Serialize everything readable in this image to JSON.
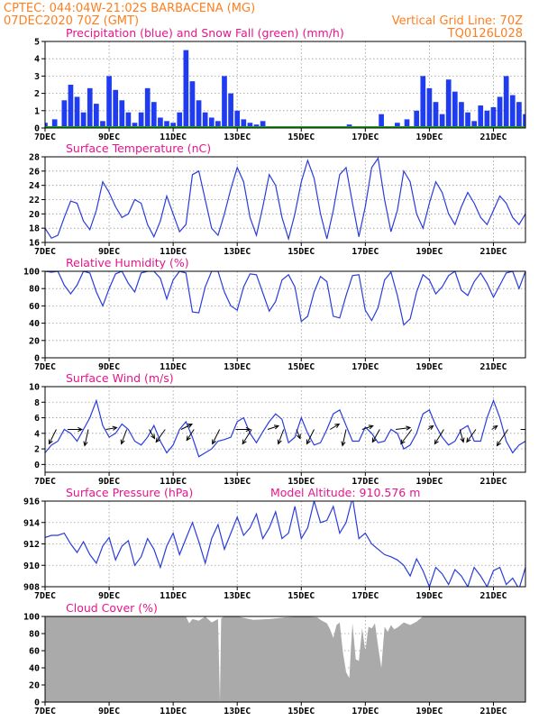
{
  "header": {
    "station": "CPTEC:   044:04W-21:02S  BARBACENA (MG)",
    "run": "07DEC2020 70Z (GMT)",
    "grid_note": "Vertical Grid Line: 70Z",
    "model_code": "TQ0126L028"
  },
  "colors": {
    "header_text": "#ff7f1f",
    "panel_title": "#e8148c",
    "precip": "#1f3cf0",
    "snow": "#22a022",
    "line": "#2a3cdc",
    "cloud": "#aaaaaa"
  },
  "x_axis": {
    "days": [
      7,
      22
    ],
    "tick_labels": [
      "7DEC",
      "9DEC",
      "11DEC",
      "13DEC",
      "15DEC",
      "17DEC",
      "19DEC",
      "21DEC"
    ],
    "tick_days": [
      7,
      9,
      11,
      13,
      15,
      17,
      19,
      21
    ]
  },
  "panels": [
    {
      "id": "precip",
      "title": "Precipitation (blue) and Snow Fall (green) (mm/h)",
      "ylim": [
        0,
        5
      ],
      "yticks": [
        "0",
        "1",
        "2",
        "3",
        "4",
        "5"
      ]
    },
    {
      "id": "temp",
      "title": "Surface Temperature (nC)",
      "ylim": [
        16,
        28
      ],
      "yticks": [
        "16",
        "18",
        "20",
        "22",
        "24",
        "26",
        "28"
      ]
    },
    {
      "id": "rh",
      "title": "Relative Humidity (%)",
      "ylim": [
        0,
        100
      ],
      "yticks": [
        "0",
        "20",
        "40",
        "60",
        "80",
        "100"
      ]
    },
    {
      "id": "wind",
      "title": "Surface Wind (m/s)",
      "ylim": [
        -1,
        10
      ],
      "yticks": [
        "0",
        "2",
        "4",
        "6",
        "8",
        "10"
      ]
    },
    {
      "id": "pressure",
      "title": "Surface Pressure (hPa)",
      "extra": "Model Altitude: 910.576 m",
      "ylim": [
        908,
        916
      ],
      "yticks": [
        "908",
        "910",
        "912",
        "914",
        "916"
      ]
    },
    {
      "id": "cloud",
      "title": "Cloud Cover (%)",
      "ylim": [
        0,
        100
      ],
      "yticks": [
        "0",
        "20",
        "40",
        "60",
        "80",
        "100"
      ]
    }
  ],
  "chart_data": [
    {
      "type": "bar",
      "title": "Precipitation (blue) and Snow Fall (green) (mm/h)",
      "ylim": [
        0,
        5
      ],
      "x_day": [
        7.0,
        7.3,
        7.6,
        7.8,
        8.0,
        8.2,
        8.4,
        8.6,
        8.8,
        9.0,
        9.2,
        9.4,
        9.6,
        9.8,
        10.0,
        10.2,
        10.4,
        10.6,
        10.8,
        11.0,
        11.2,
        11.4,
        11.6,
        11.8,
        12.0,
        12.2,
        12.4,
        12.6,
        12.8,
        13.0,
        13.2,
        13.4,
        13.6,
        13.8,
        14.0,
        14.5,
        15.0,
        15.5,
        16.0,
        16.5,
        17.0,
        17.5,
        18.0,
        18.3,
        18.6,
        18.8,
        19.0,
        19.2,
        19.4,
        19.6,
        19.8,
        20.0,
        20.2,
        20.4,
        20.6,
        20.8,
        21.0,
        21.2,
        21.4,
        21.6,
        21.8,
        22.0
      ],
      "precip": [
        0.3,
        0.5,
        1.6,
        2.5,
        1.8,
        0.9,
        2.3,
        1.4,
        0.4,
        3.0,
        2.2,
        1.6,
        0.9,
        0.3,
        0.9,
        2.3,
        1.5,
        0.6,
        0.4,
        0.3,
        0.9,
        4.5,
        2.7,
        1.6,
        0.9,
        0.6,
        0.4,
        3.0,
        2.0,
        1.0,
        0.5,
        0.3,
        0.2,
        0.4,
        0.1,
        0.0,
        0.0,
        0.0,
        0.0,
        0.2,
        0.0,
        0.8,
        0.3,
        0.5,
        1.0,
        3.0,
        2.3,
        1.5,
        0.8,
        2.8,
        2.1,
        1.5,
        0.9,
        0.4,
        1.3,
        1.0,
        1.2,
        1.8,
        3.0,
        1.9,
        1.5,
        0.8
      ],
      "snow": 0
    },
    {
      "type": "line",
      "title": "Surface Temperature (nC)",
      "ylim": [
        16,
        28
      ],
      "x_day": [
        7.0,
        7.2,
        7.4,
        7.6,
        7.8,
        8.0,
        8.2,
        8.4,
        8.6,
        8.8,
        9.0,
        9.2,
        9.4,
        9.6,
        9.8,
        10.0,
        10.2,
        10.4,
        10.6,
        10.8,
        11.0,
        11.2,
        11.4,
        11.6,
        11.8,
        12.0,
        12.2,
        12.4,
        12.6,
        12.8,
        13.0,
        13.2,
        13.4,
        13.6,
        13.8,
        14.0,
        14.2,
        14.4,
        14.6,
        14.8,
        15.0,
        15.2,
        15.4,
        15.6,
        15.8,
        16.0,
        16.2,
        16.4,
        16.6,
        16.8,
        17.0,
        17.2,
        17.4,
        17.6,
        17.8,
        18.0,
        18.2,
        18.4,
        18.6,
        18.8,
        19.0,
        19.2,
        19.4,
        19.6,
        19.8,
        20.0,
        20.2,
        20.4,
        20.6,
        20.8,
        21.0,
        21.2,
        21.4,
        21.6,
        21.8,
        22.0
      ],
      "values": [
        18.0,
        16.6,
        17.0,
        19.5,
        21.8,
        21.5,
        19.0,
        17.8,
        20.5,
        24.5,
        23.0,
        21.0,
        19.5,
        20.0,
        22.0,
        21.5,
        18.5,
        16.8,
        19.0,
        22.5,
        20.0,
        17.5,
        18.5,
        25.5,
        26.0,
        22.0,
        18.0,
        17.0,
        20.0,
        23.5,
        26.5,
        24.5,
        19.5,
        17.0,
        21.0,
        25.5,
        24.0,
        19.5,
        16.5,
        20.0,
        24.5,
        27.5,
        25.0,
        20.0,
        16.5,
        20.5,
        25.5,
        26.5,
        21.5,
        16.8,
        21.0,
        26.5,
        27.8,
        22.0,
        17.5,
        20.5,
        26.0,
        24.5,
        20.0,
        18.0,
        21.5,
        24.5,
        23.0,
        20.0,
        18.5,
        21.0,
        23.0,
        21.5,
        19.5,
        18.5,
        20.5,
        22.5,
        21.5,
        19.5,
        18.5,
        20.0
      ]
    },
    {
      "type": "line",
      "title": "Relative Humidity (%)",
      "ylim": [
        0,
        100
      ],
      "x_day": [
        7.0,
        7.2,
        7.4,
        7.6,
        7.8,
        8.0,
        8.2,
        8.4,
        8.6,
        8.8,
        9.0,
        9.2,
        9.4,
        9.6,
        9.8,
        10.0,
        10.2,
        10.4,
        10.6,
        10.8,
        11.0,
        11.2,
        11.4,
        11.6,
        11.8,
        12.0,
        12.2,
        12.4,
        12.6,
        12.8,
        13.0,
        13.2,
        13.4,
        13.6,
        13.8,
        14.0,
        14.2,
        14.4,
        14.6,
        14.8,
        15.0,
        15.2,
        15.4,
        15.6,
        15.8,
        16.0,
        16.2,
        16.4,
        16.6,
        16.8,
        17.0,
        17.2,
        17.4,
        17.6,
        17.8,
        18.0,
        18.2,
        18.4,
        18.6,
        18.8,
        19.0,
        19.2,
        19.4,
        19.6,
        19.8,
        20.0,
        20.2,
        20.4,
        20.6,
        20.8,
        21.0,
        21.2,
        21.4,
        21.6,
        21.8,
        22.0
      ],
      "values": [
        100,
        99,
        100,
        84,
        74,
        84,
        100,
        98,
        76,
        60,
        80,
        97,
        100,
        86,
        76,
        98,
        100,
        100,
        92,
        68,
        90,
        100,
        98,
        53,
        52,
        82,
        100,
        100,
        76,
        60,
        55,
        82,
        97,
        96,
        75,
        54,
        65,
        90,
        96,
        82,
        42,
        48,
        76,
        94,
        88,
        48,
        46,
        72,
        95,
        96,
        55,
        43,
        58,
        90,
        99,
        72,
        38,
        45,
        76,
        96,
        90,
        74,
        82,
        95,
        100,
        78,
        72,
        88,
        98,
        86,
        70,
        84,
        98,
        100,
        80,
        100
      ]
    },
    {
      "type": "line",
      "title": "Surface Wind (m/s)",
      "ylim": [
        -1,
        10
      ],
      "x_day": [
        7.0,
        7.2,
        7.4,
        7.6,
        7.8,
        8.0,
        8.2,
        8.4,
        8.6,
        8.8,
        9.0,
        9.2,
        9.4,
        9.6,
        9.8,
        10.0,
        10.2,
        10.4,
        10.6,
        10.8,
        11.0,
        11.2,
        11.4,
        11.6,
        11.8,
        12.0,
        12.2,
        12.4,
        12.6,
        12.8,
        13.0,
        13.2,
        13.4,
        13.6,
        13.8,
        14.0,
        14.2,
        14.4,
        14.6,
        14.8,
        15.0,
        15.2,
        15.4,
        15.6,
        15.8,
        16.0,
        16.2,
        16.4,
        16.6,
        16.8,
        17.0,
        17.2,
        17.4,
        17.6,
        17.8,
        18.0,
        18.2,
        18.4,
        18.6,
        18.8,
        19.0,
        19.2,
        19.4,
        19.6,
        19.8,
        20.0,
        20.2,
        20.4,
        20.6,
        20.8,
        21.0,
        21.2,
        21.4,
        21.6,
        21.8,
        22.0
      ],
      "values": [
        1.5,
        2.5,
        3.0,
        4.5,
        4.0,
        3.0,
        4.5,
        6.0,
        8.2,
        5.0,
        3.5,
        4.0,
        5.2,
        4.5,
        3.0,
        2.5,
        3.5,
        5.0,
        3.0,
        1.5,
        2.5,
        4.5,
        5.5,
        3.5,
        1.0,
        1.5,
        2.0,
        3.0,
        3.2,
        3.5,
        5.5,
        6.0,
        4.0,
        2.8,
        4.2,
        5.5,
        6.5,
        5.8,
        2.8,
        3.5,
        6.0,
        4.0,
        2.5,
        2.8,
        4.5,
        6.5,
        7.0,
        5.0,
        3.0,
        3.0,
        4.8,
        4.0,
        2.8,
        3.0,
        4.5,
        4.0,
        2.0,
        2.5,
        4.0,
        6.5,
        7.0,
        5.0,
        3.5,
        2.5,
        3.0,
        4.5,
        5.0,
        3.0,
        3.0,
        6.0,
        8.2,
        6.0,
        3.0,
        1.5,
        2.5,
        3.0
      ],
      "arrow_day": [
        7.35,
        7.7,
        8.35,
        8.9,
        9.55,
        10.25,
        10.75,
        11.25,
        11.65,
        12.45,
        12.95,
        13.45,
        13.95,
        14.45,
        14.85,
        15.4,
        15.9,
        16.4,
        16.9,
        17.45,
        17.95,
        18.45,
        18.95,
        19.45,
        19.95,
        20.45,
        20.95,
        21.45,
        21.85
      ],
      "arrow_u": [
        -0.4,
        0.8,
        -0.2,
        0.6,
        -0.3,
        0.3,
        -0.5,
        0.6,
        -0.4,
        -0.4,
        0.8,
        -0.5,
        0.6,
        -0.3,
        0.2,
        -0.4,
        0.5,
        -0.2,
        0.6,
        -0.4,
        0.8,
        -0.6,
        0.3,
        -0.5,
        0.2,
        -0.5,
        0.3,
        -0.6,
        0.5
      ],
      "arrow_v": [
        -0.8,
        0.0,
        -0.9,
        0.1,
        -0.8,
        -0.5,
        -0.7,
        0.3,
        -0.6,
        -0.8,
        0.0,
        -0.8,
        0.2,
        -0.8,
        -0.5,
        -0.8,
        0.3,
        -0.9,
        0.2,
        -0.7,
        0.1,
        -0.8,
        0.2,
        -0.8,
        -0.7,
        -0.7,
        0.2,
        -0.9,
        0.0
      ]
    },
    {
      "type": "line",
      "title": "Surface Pressure (hPa)",
      "ylim": [
        908,
        916
      ],
      "x_day": [
        7.0,
        7.2,
        7.4,
        7.6,
        7.8,
        8.0,
        8.2,
        8.4,
        8.6,
        8.8,
        9.0,
        9.2,
        9.4,
        9.6,
        9.8,
        10.0,
        10.2,
        10.4,
        10.6,
        10.8,
        11.0,
        11.2,
        11.4,
        11.6,
        11.8,
        12.0,
        12.2,
        12.4,
        12.6,
        12.8,
        13.0,
        13.2,
        13.4,
        13.6,
        13.8,
        14.0,
        14.2,
        14.4,
        14.6,
        14.8,
        15.0,
        15.2,
        15.4,
        15.6,
        15.8,
        16.0,
        16.2,
        16.4,
        16.6,
        16.8,
        17.0,
        17.2,
        17.4,
        17.6,
        17.8,
        18.0,
        18.2,
        18.4,
        18.6,
        18.8,
        19.0,
        19.2,
        19.4,
        19.6,
        19.8,
        20.0,
        20.2,
        20.4,
        20.6,
        20.8,
        21.0,
        21.2,
        21.4,
        21.6,
        21.8,
        22.0
      ],
      "values": [
        912.6,
        912.8,
        912.8,
        913.0,
        912.0,
        911.2,
        912.2,
        911.0,
        910.2,
        911.8,
        912.6,
        910.5,
        911.8,
        912.3,
        910.0,
        910.8,
        912.5,
        911.5,
        909.8,
        911.8,
        913.0,
        911.0,
        912.5,
        914.0,
        912.2,
        910.2,
        912.5,
        913.8,
        911.5,
        913.0,
        914.5,
        912.8,
        913.5,
        914.8,
        912.5,
        913.5,
        915.0,
        912.5,
        913.0,
        915.5,
        912.5,
        913.5,
        916.0,
        914.0,
        914.2,
        915.5,
        913.0,
        914.0,
        916.3,
        912.5,
        913.0,
        912.0,
        911.5,
        911.0,
        910.8,
        910.5,
        910.0,
        909.0,
        910.6,
        909.5,
        908.0,
        909.8,
        909.2,
        908.2,
        909.6,
        909.0,
        908.0,
        909.8,
        909.0,
        908.0,
        909.5,
        909.8,
        908.2,
        908.8,
        907.8,
        909.8
      ]
    },
    {
      "type": "area",
      "title": "Cloud Cover (%)",
      "ylim": [
        0,
        100
      ],
      "x_day": [
        7.0,
        9.0,
        11.0,
        11.4,
        11.5,
        11.6,
        11.8,
        12.0,
        12.2,
        12.4,
        12.46,
        12.5,
        12.6,
        13.0,
        13.5,
        14.0,
        14.5,
        15.0,
        15.5,
        15.6,
        15.8,
        15.9,
        16.0,
        16.1,
        16.2,
        16.3,
        16.4,
        16.5,
        16.55,
        16.6,
        16.7,
        16.8,
        16.9,
        17.0,
        17.1,
        17.2,
        17.3,
        17.4,
        17.5,
        17.6,
        17.7,
        17.8,
        17.9,
        18.0,
        18.2,
        18.4,
        18.6,
        18.8,
        19.0,
        20.0,
        21.0,
        22.0
      ],
      "values": [
        100,
        100,
        100,
        100,
        92,
        97,
        95,
        100,
        93,
        97,
        0,
        98,
        100,
        100,
        96,
        97,
        99,
        100,
        99,
        96,
        92,
        85,
        75,
        90,
        93,
        58,
        35,
        28,
        62,
        92,
        50,
        48,
        86,
        60,
        88,
        86,
        92,
        65,
        40,
        88,
        82,
        90,
        85,
        87,
        93,
        90,
        94,
        100,
        100,
        100,
        100,
        100
      ]
    }
  ]
}
